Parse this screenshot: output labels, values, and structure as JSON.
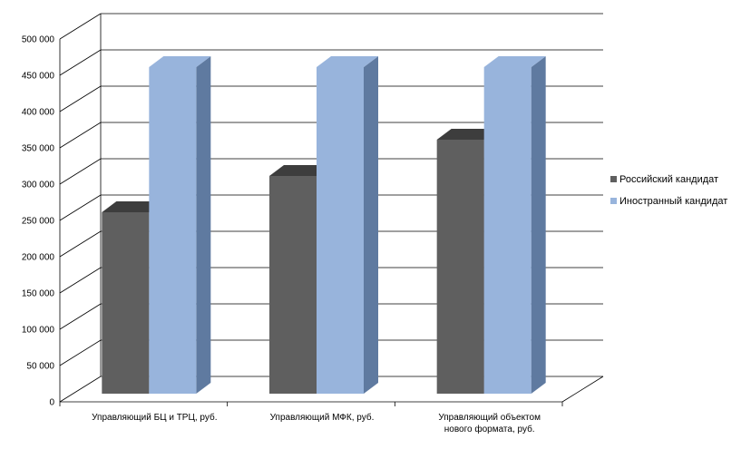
{
  "chart_data": {
    "type": "bar",
    "categories": [
      [
        "Управляющий  БЦ и ТРЦ, руб."
      ],
      [
        "Управляющий МФК, руб."
      ],
      [
        "Управляющий объектом",
        "нового формата, руб."
      ]
    ],
    "series": [
      {
        "name": "Российский кандидат",
        "values": [
          250000,
          300000,
          350000
        ]
      },
      {
        "name": "Иностранный кандидат",
        "values": [
          450000,
          450000,
          450000
        ]
      }
    ],
    "yticks": [
      "0",
      "50 000",
      "100 000",
      "150 000",
      "200 000",
      "250 000",
      "300 000",
      "350 000",
      "400 000",
      "450 000",
      "500 000"
    ],
    "ylim": [
      0,
      500000
    ],
    "legend_position": "right",
    "grid": true,
    "colors": {
      "series0_front": "#5f5f5f",
      "series0_top": "#3d3d3d",
      "series0_side": "#444444",
      "series1_front": "#98b4dc",
      "series1_top": "#98b4dc",
      "series1_side": "#5f7aa0",
      "grid": "#000000"
    }
  }
}
